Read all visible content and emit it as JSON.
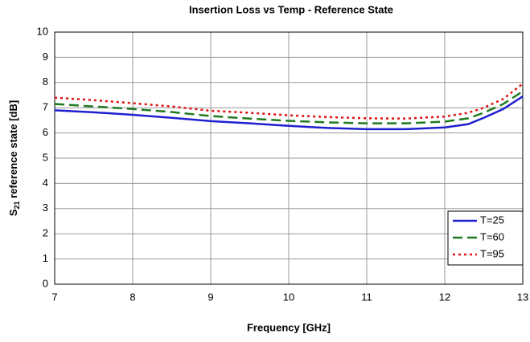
{
  "chart_data": {
    "type": "line",
    "title": "Insertion Loss vs Temp - Reference State",
    "x_label": "Frequency [GHz]",
    "y_label": {
      "symbol": "S",
      "subscript": "21",
      "text": " reference state [dB]"
    },
    "x": [
      7,
      7.5,
      8,
      8.5,
      9,
      9.5,
      10,
      10.5,
      11,
      11.5,
      12,
      12.3,
      12.5,
      12.75,
      13
    ],
    "series": [
      {
        "name": "T=25",
        "color": "#1f1fd0",
        "dash": "solid",
        "values": [
          6.9,
          6.82,
          6.72,
          6.6,
          6.47,
          6.38,
          6.28,
          6.2,
          6.15,
          6.15,
          6.22,
          6.35,
          6.6,
          6.95,
          7.45
        ]
      },
      {
        "name": "T=60",
        "color": "#1f7a1f",
        "dash": "dashed",
        "values": [
          7.15,
          7.05,
          6.95,
          6.83,
          6.67,
          6.57,
          6.48,
          6.42,
          6.38,
          6.38,
          6.45,
          6.58,
          6.8,
          7.15,
          7.65
        ]
      },
      {
        "name": "T=95",
        "color": "#e01010",
        "dash": "dotted",
        "values": [
          7.4,
          7.3,
          7.18,
          7.05,
          6.88,
          6.8,
          6.7,
          6.63,
          6.58,
          6.57,
          6.65,
          6.8,
          7.0,
          7.35,
          7.95
        ]
      }
    ],
    "xlim": [
      7,
      13
    ],
    "xticks": [
      7,
      8,
      9,
      10,
      11,
      12,
      13
    ],
    "ylim": [
      0,
      10
    ],
    "yticks": [
      0,
      1,
      2,
      3,
      4,
      5,
      6,
      7,
      8,
      9,
      10
    ],
    "grid": true,
    "legend": "lower-right"
  }
}
